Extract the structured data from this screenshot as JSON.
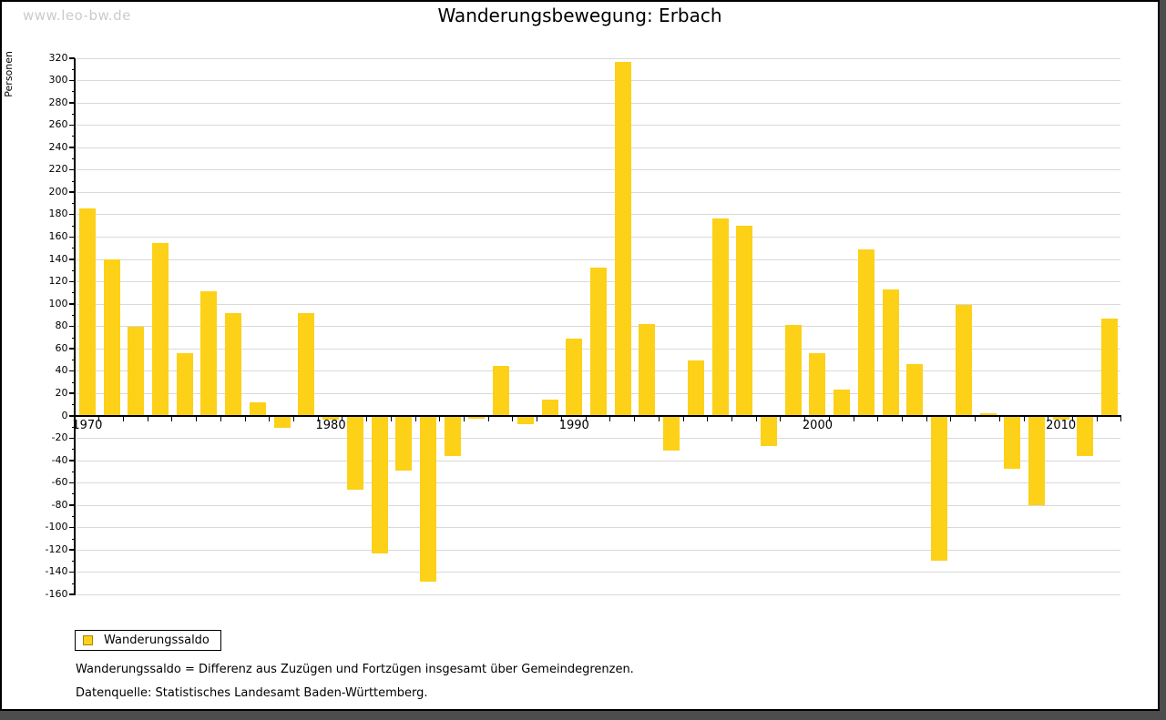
{
  "watermark": "www.leo-bw.de",
  "title": "Wanderungsbewegung: Erbach",
  "legend": {
    "label": "Wanderungssaldo"
  },
  "footnotes": [
    "Wanderungssaldo = Differenz aus Zuzügen und Fortzügen insgesamt über Gemeindegrenzen.",
    "Datenquelle: Statistisches Landesamt Baden-Württemberg."
  ],
  "colors": {
    "bar": "#FCD118",
    "legend_swatch_border": "#A98307",
    "grid": "#D9D9D9",
    "axis": "#000000",
    "watermark": "#CBCBCB",
    "frame": "#4D4D4D"
  },
  "chart_data": {
    "type": "bar",
    "title": "Wanderungsbewegung: Erbach",
    "xlabel": "",
    "ylabel": "Personen",
    "series_name": "Wanderungssaldo",
    "unit": "Personen",
    "ylim": [
      -160,
      320
    ],
    "ytick_step": 20,
    "ytick_minor_step": 10,
    "grid": true,
    "legend_position": "bottom-left",
    "xtick_labeled_years": [
      1970,
      1980,
      1990,
      2000,
      2010
    ],
    "years": [
      1970,
      1971,
      1972,
      1973,
      1974,
      1975,
      1976,
      1977,
      1978,
      1979,
      1980,
      1981,
      1982,
      1983,
      1984,
      1985,
      1986,
      1987,
      1988,
      1989,
      1990,
      1991,
      1992,
      1993,
      1994,
      1995,
      1996,
      1997,
      1998,
      1999,
      2000,
      2001,
      2002,
      2003,
      2004,
      2005,
      2006,
      2007,
      2008,
      2009,
      2010,
      2011,
      2012
    ],
    "values": [
      185,
      140,
      79,
      154,
      56,
      111,
      92,
      12,
      -11,
      92,
      -4,
      -66,
      -123,
      -49,
      -149,
      -36,
      -3,
      44,
      -8,
      14,
      69,
      132,
      316,
      82,
      -31,
      49,
      176,
      170,
      -27,
      81,
      56,
      23,
      149,
      113,
      46,
      -130,
      99,
      2,
      -48,
      -80,
      -4,
      -36,
      87
    ]
  }
}
